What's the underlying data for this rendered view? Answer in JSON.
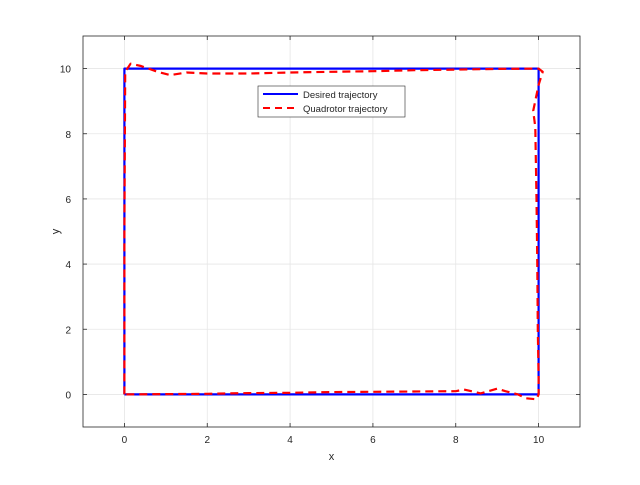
{
  "chart_data": {
    "type": "line",
    "title": "",
    "xlabel": "x",
    "ylabel": "y",
    "xlim": [
      -1,
      11
    ],
    "ylim": [
      -1,
      11
    ],
    "xticks": [
      0,
      2,
      4,
      6,
      8,
      10
    ],
    "yticks": [
      0,
      2,
      4,
      6,
      8,
      10
    ],
    "grid": true,
    "legend_position": "top-center (inside)",
    "series": [
      {
        "name": "Desired trajectory",
        "color": "#0000ff",
        "style": "solid",
        "x": [
          0,
          0,
          10,
          10,
          0
        ],
        "y": [
          0,
          10,
          10,
          0,
          0
        ]
      },
      {
        "name": "Quadrotor trajectory",
        "color": "#ff0000",
        "style": "dashed",
        "x": [
          0,
          0,
          0.02,
          0.15,
          0.4,
          0.8,
          1.1,
          1.5,
          2,
          3,
          4,
          5,
          6,
          7,
          8,
          9,
          10,
          10.1,
          10,
          9.87,
          9.92,
          9.95,
          9.97,
          9.98,
          10,
          10,
          9.95,
          9.7,
          9.5,
          9.2,
          9.0,
          8.6,
          8.2,
          8,
          7,
          6,
          5,
          4,
          3,
          2,
          1,
          0
        ],
        "y": [
          0,
          5,
          9.9,
          10.15,
          10.08,
          9.9,
          9.8,
          9.88,
          9.85,
          9.85,
          9.88,
          9.9,
          9.92,
          9.95,
          9.97,
          9.99,
          10,
          9.9,
          9.5,
          8.7,
          8.2,
          6,
          4,
          2,
          0.5,
          0,
          -0.15,
          -0.12,
          0,
          0.1,
          0.18,
          0.03,
          0.15,
          0.1,
          0.09,
          0.08,
          0.07,
          0.05,
          0.04,
          0.02,
          0.01,
          0
        ]
      }
    ]
  }
}
